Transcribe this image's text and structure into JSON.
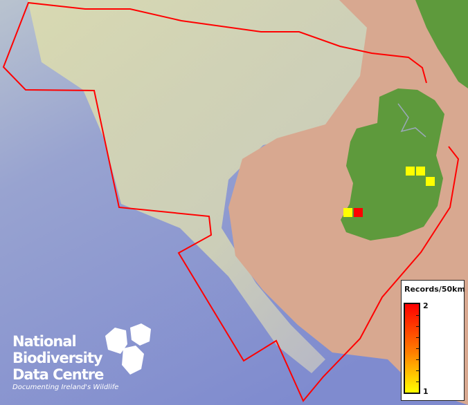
{
  "legend": {
    "title": "Records/50km",
    "max_label": "2",
    "min_label": "1",
    "colors": {
      "max": "#ff0000",
      "min": "#ffff00"
    }
  },
  "logo": {
    "line1": "National",
    "line2": "Biodiversity",
    "line3": "Data Centre",
    "tagline": "Documenting Ireland's Wildlife"
  },
  "records": [
    {
      "value": 1,
      "color": "#ffff00"
    },
    {
      "value": 1,
      "color": "#ffff00"
    },
    {
      "value": 1,
      "color": "#ffff00"
    },
    {
      "value": 1,
      "color": "#ffff00"
    },
    {
      "value": 2,
      "color": "#ff0000"
    }
  ],
  "boundary_color": "#ff0000"
}
